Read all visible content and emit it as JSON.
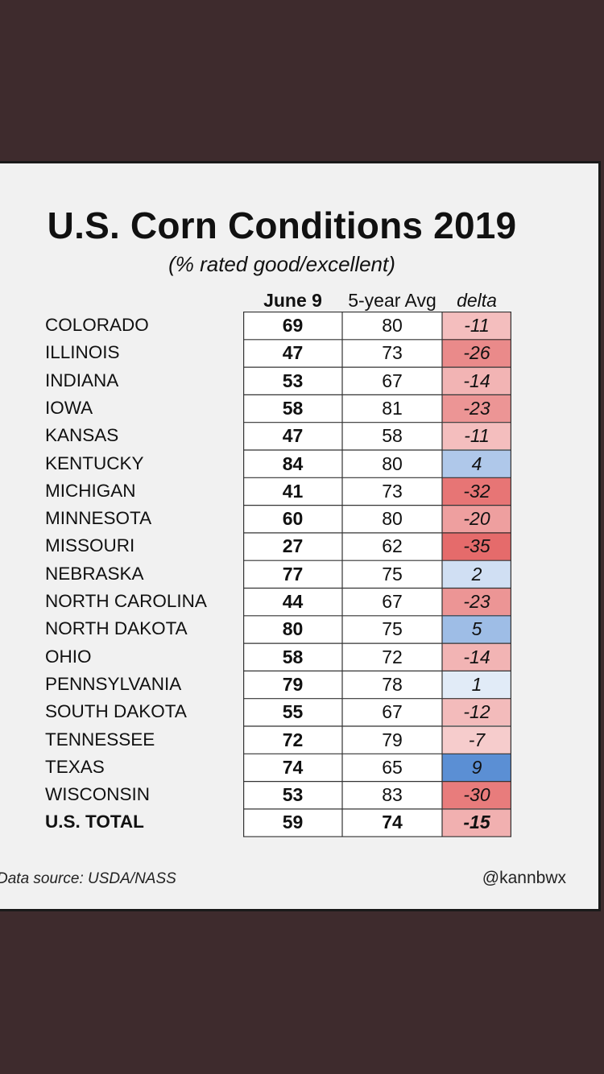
{
  "chart_data": {
    "type": "table",
    "title": "U.S. Corn Conditions 2019",
    "subtitle": "(% rated good/excellent)",
    "columns": [
      "June 9",
      "5-year Avg",
      "delta"
    ],
    "rows": [
      {
        "state": "COLORADO",
        "june9": "69",
        "avg": "80",
        "delta": "-11"
      },
      {
        "state": "ILLINOIS",
        "june9": "47",
        "avg": "73",
        "delta": "-26"
      },
      {
        "state": "INDIANA",
        "june9": "53",
        "avg": "67",
        "delta": "-14"
      },
      {
        "state": "IOWA",
        "june9": "58",
        "avg": "81",
        "delta": "-23"
      },
      {
        "state": "KANSAS",
        "june9": "47",
        "avg": "58",
        "delta": "-11"
      },
      {
        "state": "KENTUCKY",
        "june9": "84",
        "avg": "80",
        "delta": "4"
      },
      {
        "state": "MICHIGAN",
        "june9": "41",
        "avg": "73",
        "delta": "-32"
      },
      {
        "state": "MINNESOTA",
        "june9": "60",
        "avg": "80",
        "delta": "-20"
      },
      {
        "state": "MISSOURI",
        "june9": "27",
        "avg": "62",
        "delta": "-35"
      },
      {
        "state": "NEBRASKA",
        "june9": "77",
        "avg": "75",
        "delta": "2"
      },
      {
        "state": "NORTH CAROLINA",
        "june9": "44",
        "avg": "67",
        "delta": "-23"
      },
      {
        "state": "NORTH DAKOTA",
        "june9": "80",
        "avg": "75",
        "delta": "5"
      },
      {
        "state": "OHIO",
        "june9": "58",
        "avg": "72",
        "delta": "-14"
      },
      {
        "state": "PENNSYLVANIA",
        "june9": "79",
        "avg": "78",
        "delta": "1"
      },
      {
        "state": "SOUTH DAKOTA",
        "june9": "55",
        "avg": "67",
        "delta": "-12"
      },
      {
        "state": "TENNESSEE",
        "june9": "72",
        "avg": "79",
        "delta": "-7"
      },
      {
        "state": "TEXAS",
        "june9": "74",
        "avg": "65",
        "delta": "9"
      },
      {
        "state": "WISCONSIN",
        "june9": "53",
        "avg": "83",
        "delta": "-30"
      }
    ],
    "total": {
      "state": "U.S. TOTAL",
      "june9": "59",
      "avg": "74",
      "delta": "-15"
    },
    "colors": {
      "negative_max": "#e56b6b",
      "positive_max": "#5b8fd4",
      "neutral": "#ffffff"
    }
  },
  "footer": {
    "source": "Data source: USDA/NASS",
    "handle": "@kannbwx"
  }
}
